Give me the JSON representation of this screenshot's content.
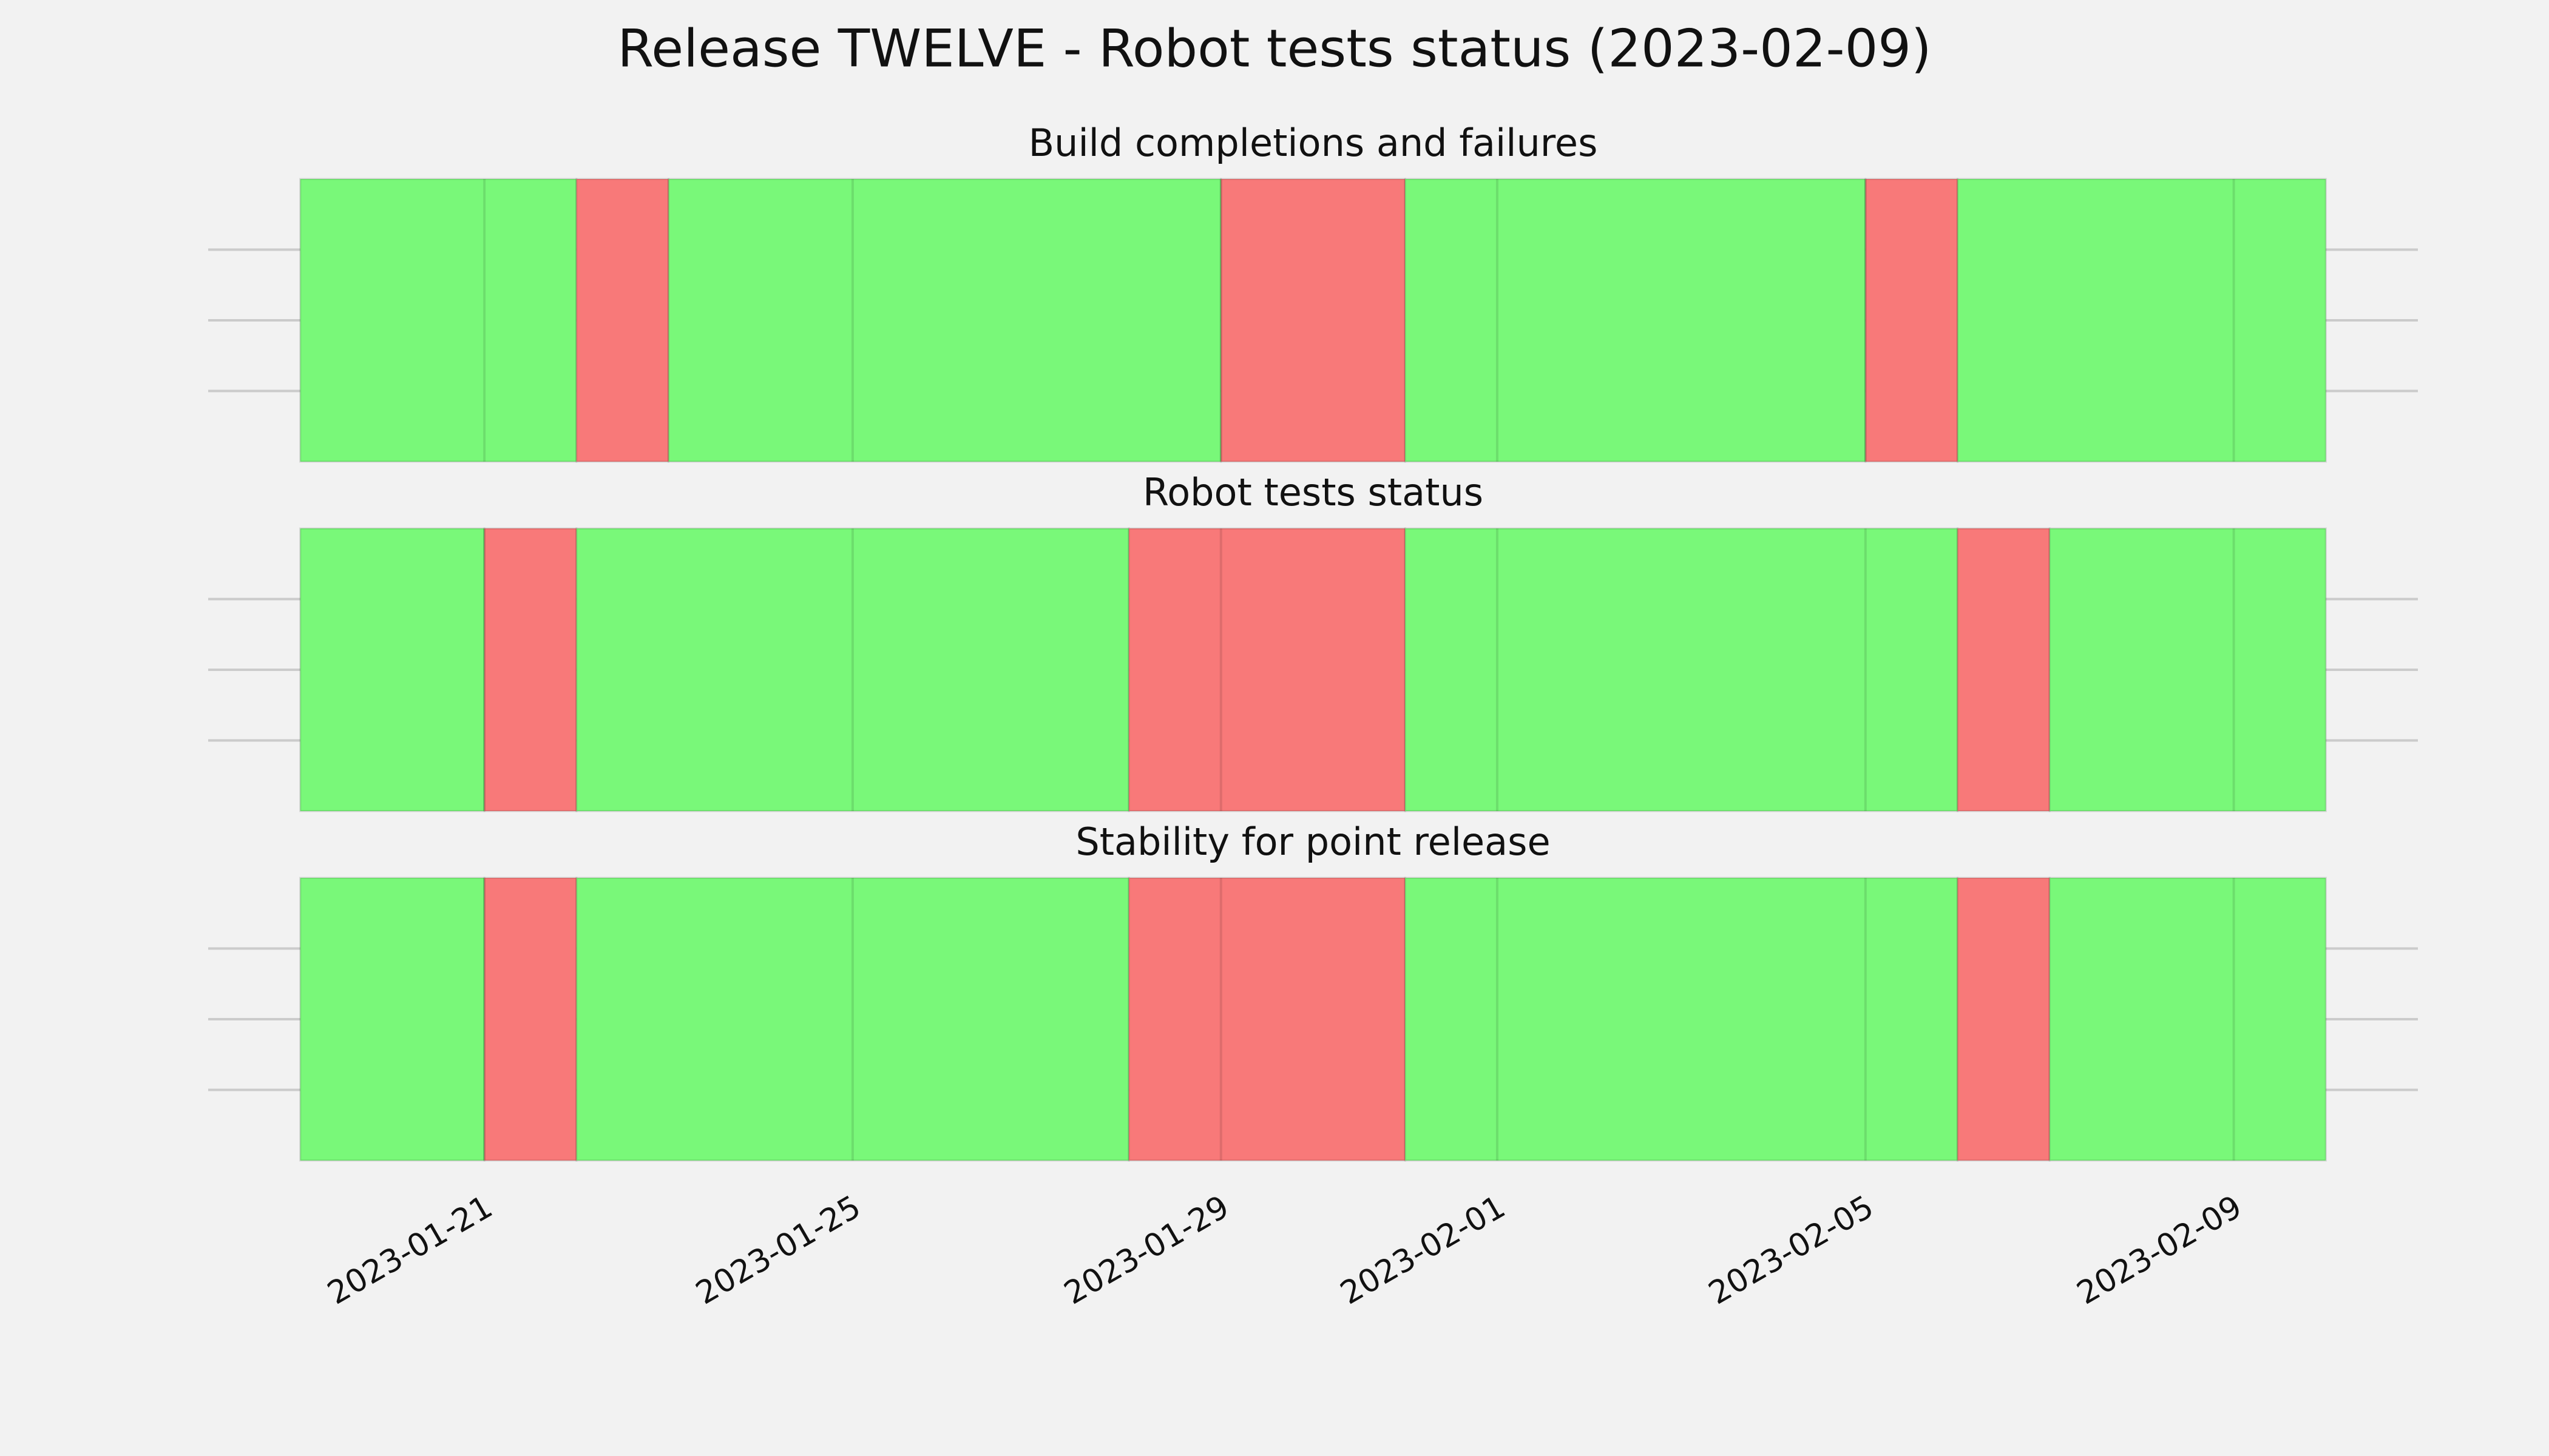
{
  "title": "Release TWELVE - Robot tests status (2023-02-09)",
  "chart_data": [
    {
      "type": "span",
      "title": "Build completions and failures",
      "spans": [
        {
          "start": "2023-01-19",
          "end": "2023-01-22",
          "color": "#79f879"
        },
        {
          "start": "2023-01-22",
          "end": "2023-01-23",
          "color": "#f87979"
        },
        {
          "start": "2023-01-23",
          "end": "2023-01-29",
          "color": "#79f879"
        },
        {
          "start": "2023-01-29",
          "end": "2023-01-31",
          "color": "#f87979"
        },
        {
          "start": "2023-01-31",
          "end": "2023-02-05",
          "color": "#79f879"
        },
        {
          "start": "2023-02-05",
          "end": "2023-02-06",
          "color": "#f87979"
        },
        {
          "start": "2023-02-06",
          "end": "2023-02-10",
          "color": "#79f879"
        }
      ],
      "xlim": [
        "2023-01-18",
        "2023-02-11"
      ],
      "xticks": [
        "2023-01-21",
        "2023-01-25",
        "2023-01-29",
        "2023-02-01",
        "2023-02-05",
        "2023-02-09"
      ],
      "ylim": [
        0,
        1
      ],
      "yticks": [
        0.25,
        0.5,
        0.75
      ],
      "grid": true
    },
    {
      "type": "span",
      "title": "Robot tests status",
      "spans": [
        {
          "start": "2023-01-19",
          "end": "2023-01-21",
          "color": "#79f879"
        },
        {
          "start": "2023-01-21",
          "end": "2023-01-22",
          "color": "#f87979"
        },
        {
          "start": "2023-01-22",
          "end": "2023-01-28",
          "color": "#79f879"
        },
        {
          "start": "2023-01-28",
          "end": "2023-01-31",
          "color": "#f87979"
        },
        {
          "start": "2023-01-31",
          "end": "2023-02-06",
          "color": "#79f879"
        },
        {
          "start": "2023-02-06",
          "end": "2023-02-07",
          "color": "#f87979"
        },
        {
          "start": "2023-02-07",
          "end": "2023-02-10",
          "color": "#79f879"
        }
      ],
      "xlim": [
        "2023-01-18",
        "2023-02-11"
      ],
      "xticks": [
        "2023-01-21",
        "2023-01-25",
        "2023-01-29",
        "2023-02-01",
        "2023-02-05",
        "2023-02-09"
      ],
      "ylim": [
        0,
        1
      ],
      "yticks": [
        0.25,
        0.5,
        0.75
      ],
      "grid": true
    },
    {
      "type": "span",
      "title": "Stability for point release",
      "spans": [
        {
          "start": "2023-01-19",
          "end": "2023-01-21",
          "color": "#79f879"
        },
        {
          "start": "2023-01-21",
          "end": "2023-01-22",
          "color": "#f87979"
        },
        {
          "start": "2023-01-22",
          "end": "2023-01-28",
          "color": "#79f879"
        },
        {
          "start": "2023-01-28",
          "end": "2023-01-31",
          "color": "#f87979"
        },
        {
          "start": "2023-01-31",
          "end": "2023-02-06",
          "color": "#79f879"
        },
        {
          "start": "2023-02-06",
          "end": "2023-02-07",
          "color": "#f87979"
        },
        {
          "start": "2023-02-07",
          "end": "2023-02-10",
          "color": "#79f879"
        }
      ],
      "xlim": [
        "2023-01-18",
        "2023-02-11"
      ],
      "xticks": [
        "2023-01-21",
        "2023-01-25",
        "2023-01-29",
        "2023-02-01",
        "2023-02-05",
        "2023-02-09"
      ],
      "ylim": [
        0,
        1
      ],
      "yticks": [
        0.25,
        0.5,
        0.75
      ],
      "grid": true
    }
  ]
}
